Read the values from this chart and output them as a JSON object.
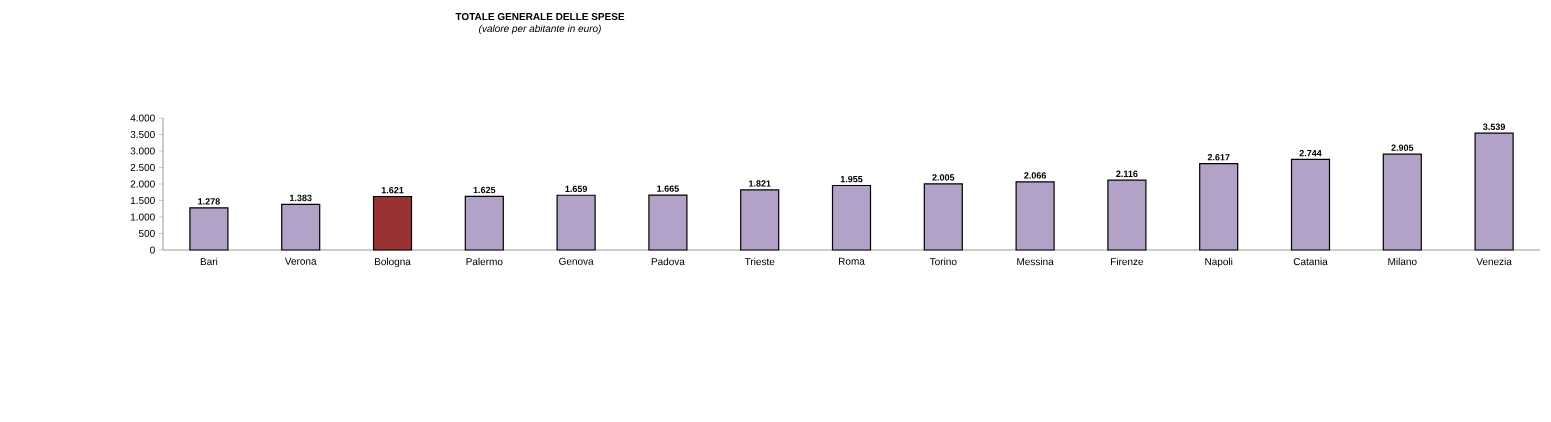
{
  "chart_data": {
    "type": "bar",
    "title": "TOTALE GENERALE  DELLE SPESE",
    "subtitle": "(valore  per abitante  in euro)",
    "categories": [
      "Bari",
      "Verona",
      "Bologna",
      "Palermo",
      "Genova",
      "Padova",
      "Trieste",
      "Roma",
      "Torino",
      "Messina",
      "Firenze",
      "Napoli",
      "Catania",
      "Milano",
      "Venezia"
    ],
    "values": [
      1278,
      1383,
      1621,
      1625,
      1659,
      1665,
      1821,
      1955,
      2005,
      2066,
      2116,
      2617,
      2744,
      2905,
      3539
    ],
    "value_labels": [
      "1.278",
      "1.383",
      "1.621",
      "1.625",
      "1.659",
      "1.665",
      "1.821",
      "1.955",
      "2.005",
      "2.066",
      "2.116",
      "2.617",
      "2.744",
      "2.905",
      "3.539"
    ],
    "colors": [
      "#b3a2c7",
      "#b3a2c7",
      "#993333",
      "#b3a2c7",
      "#b3a2c7",
      "#b3a2c7",
      "#b3a2c7",
      "#b3a2c7",
      "#b3a2c7",
      "#b3a2c7",
      "#b3a2c7",
      "#b3a2c7",
      "#b3a2c7",
      "#b3a2c7",
      "#b3a2c7"
    ],
    "ylim": [
      0,
      4000
    ],
    "yticks": [
      {
        "value": 0,
        "label": "0"
      },
      {
        "value": 500,
        "label": "500"
      },
      {
        "value": 1000,
        "label": "1.000"
      },
      {
        "value": 1500,
        "label": "1.500"
      },
      {
        "value": 2000,
        "label": "2.000"
      },
      {
        "value": 2500,
        "label": "2.500"
      },
      {
        "value": 3000,
        "label": "3.000"
      },
      {
        "value": 3500,
        "label": "3.500"
      },
      {
        "value": 4000,
        "label": "4.000"
      }
    ],
    "grid": false
  }
}
